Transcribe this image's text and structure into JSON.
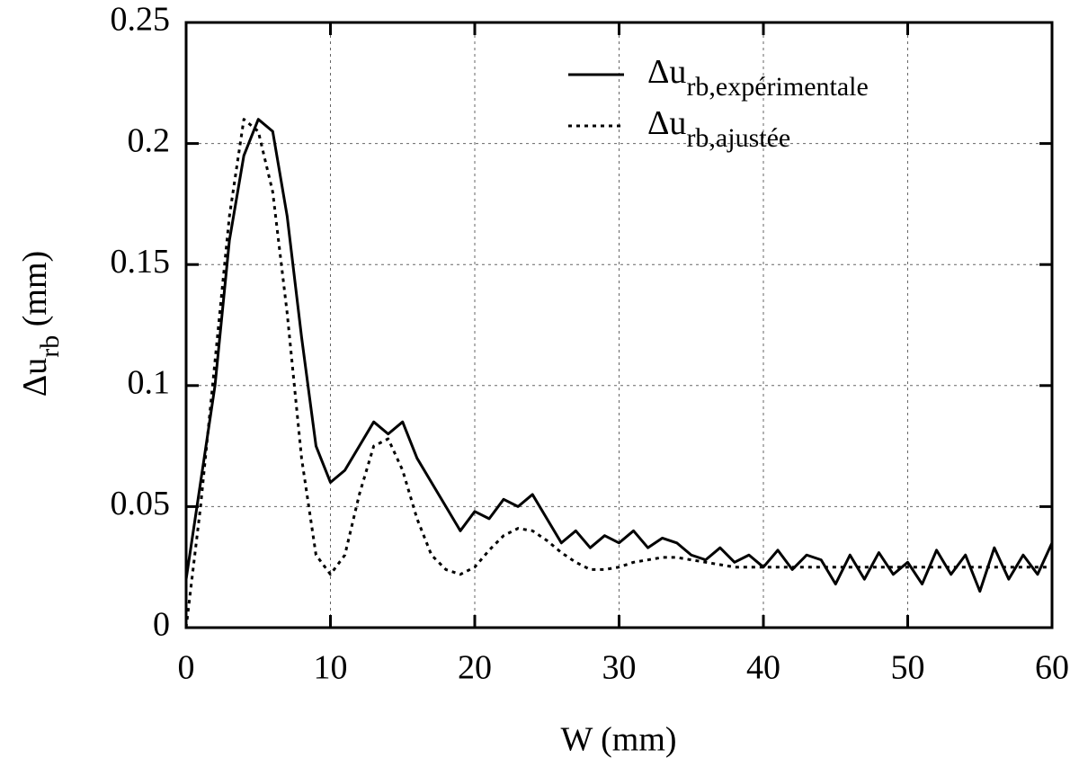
{
  "chart_data": {
    "type": "line",
    "xlabel": "W (mm)",
    "ylabel": "Δurb (mm)",
    "x": [
      0,
      1,
      2,
      3,
      4,
      5,
      6,
      7,
      8,
      9,
      10,
      11,
      12,
      13,
      14,
      15,
      16,
      17,
      18,
      19,
      20,
      21,
      22,
      23,
      24,
      25,
      26,
      27,
      28,
      29,
      30,
      31,
      32,
      33,
      34,
      35,
      36,
      37,
      38,
      39,
      40,
      41,
      42,
      43,
      44,
      45,
      46,
      47,
      48,
      49,
      50,
      51,
      52,
      53,
      54,
      55,
      56,
      57,
      58,
      59,
      60
    ],
    "series": [
      {
        "name": "Δurb,expérimentale",
        "color": "#000000",
        "dash": "solid",
        "values": [
          0.02,
          0.06,
          0.1,
          0.16,
          0.195,
          0.21,
          0.205,
          0.17,
          0.12,
          0.075,
          0.06,
          0.065,
          0.075,
          0.085,
          0.08,
          0.085,
          0.07,
          0.06,
          0.05,
          0.04,
          0.048,
          0.045,
          0.053,
          0.05,
          0.055,
          0.045,
          0.035,
          0.04,
          0.033,
          0.038,
          0.035,
          0.04,
          0.033,
          0.037,
          0.035,
          0.03,
          0.028,
          0.033,
          0.027,
          0.03,
          0.025,
          0.032,
          0.024,
          0.03,
          0.028,
          0.018,
          0.03,
          0.02,
          0.031,
          0.022,
          0.027,
          0.018,
          0.032,
          0.022,
          0.03,
          0.015,
          0.033,
          0.02,
          0.03,
          0.022,
          0.035
        ]
      },
      {
        "name": "Δurb,ajustée",
        "color": "#000000",
        "dash": "dotted",
        "values": [
          0,
          0.05,
          0.11,
          0.17,
          0.21,
          0.205,
          0.18,
          0.13,
          0.07,
          0.03,
          0.022,
          0.03,
          0.055,
          0.075,
          0.078,
          0.065,
          0.045,
          0.03,
          0.024,
          0.022,
          0.025,
          0.032,
          0.038,
          0.041,
          0.04,
          0.036,
          0.031,
          0.027,
          0.024,
          0.024,
          0.025,
          0.027,
          0.028,
          0.029,
          0.029,
          0.028,
          0.027,
          0.026,
          0.025,
          0.025,
          0.025,
          0.025,
          0.025,
          0.025,
          0.025,
          0.025,
          0.025,
          0.025,
          0.025,
          0.025,
          0.025,
          0.025,
          0.025,
          0.025,
          0.025,
          0.025,
          0.025,
          0.025,
          0.025,
          0.025,
          0.025
        ]
      }
    ],
    "xlim": [
      0,
      60
    ],
    "xticks": [
      0,
      10,
      20,
      30,
      40,
      50,
      60
    ],
    "ylim": [
      0,
      0.25
    ],
    "yticks": [
      0,
      0.05,
      0.1,
      0.15,
      0.2,
      0.25
    ],
    "grid": true,
    "legend": "upper right"
  }
}
